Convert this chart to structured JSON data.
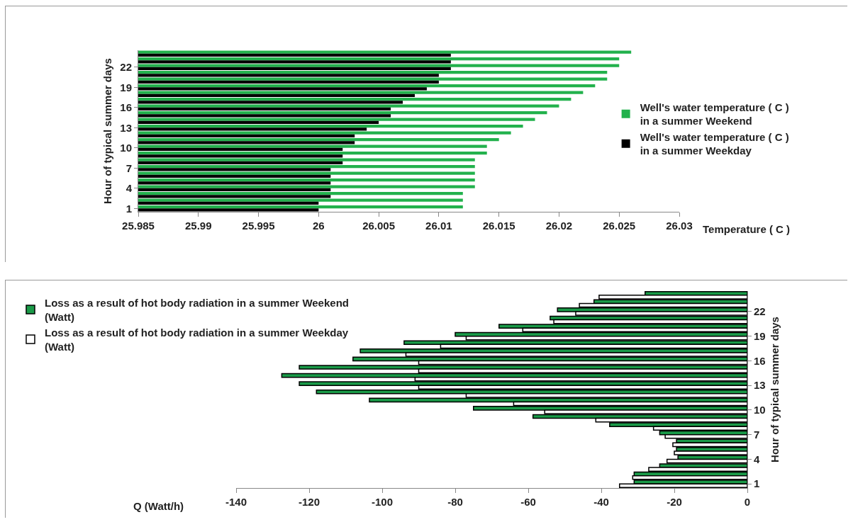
{
  "chart_data": [
    {
      "type": "bar",
      "orientation": "horizontal",
      "ylabel": "Hour of typical summer days",
      "xlabel": "Temperature ( C )",
      "categories": [
        null,
        null,
        "22",
        null,
        null,
        "19",
        null,
        null,
        "16",
        null,
        null,
        "13",
        null,
        null,
        "10",
        null,
        null,
        "7",
        null,
        null,
        "4",
        null,
        null,
        "1"
      ],
      "series": [
        {
          "name": "Well's water temperature ( C ) in a summer Weekend",
          "color": "#22b14c",
          "values": [
            26.026,
            26.025,
            26.025,
            26.024,
            26.024,
            26.023,
            26.022,
            26.021,
            26.02,
            26.019,
            26.018,
            26.017,
            26.016,
            26.015,
            26.014,
            26.014,
            26.013,
            26.013,
            26.013,
            26.013,
            26.013,
            26.012,
            26.012,
            26.012
          ]
        },
        {
          "name": "Well's water temperature ( C ) in a summer Weekday",
          "color": "#000000",
          "values": [
            26.011,
            26.011,
            26.011,
            26.01,
            26.01,
            26.009,
            26.008,
            26.007,
            26.006,
            26.006,
            26.005,
            26.004,
            26.003,
            26.003,
            26.002,
            26.002,
            26.002,
            26.001,
            26.001,
            26.001,
            26.001,
            26.001,
            26.0,
            26.0
          ]
        }
      ],
      "xlim": [
        25.985,
        26.03
      ],
      "xticks": [
        25.985,
        25.99,
        25.995,
        26,
        26.005,
        26.01,
        26.015,
        26.02,
        26.025,
        26.03
      ],
      "legend": "right",
      "grid": false
    },
    {
      "type": "bar",
      "orientation": "horizontal",
      "ylabel": "Hour of typical summer days",
      "xlabel": "Q (Watt/h)",
      "categories": [
        null,
        null,
        "22",
        null,
        null,
        "19",
        null,
        null,
        "16",
        null,
        null,
        "13",
        null,
        null,
        "10",
        null,
        null,
        "7",
        null,
        null,
        "4",
        null,
        null,
        "1"
      ],
      "series": [
        {
          "name": "Loss as a result of hot body radiation in a summer Weekend (Watt)",
          "color": "#1a9a48",
          "values": [
            -28,
            -42,
            -52,
            -54,
            -68,
            -80,
            -94,
            -106,
            -108,
            -122.7,
            -127.5,
            -122.7,
            -118,
            -103.5,
            -75,
            -58.7,
            -37.7,
            -24,
            -19.4,
            -19.4,
            -19,
            -24,
            -31,
            -31
          ]
        },
        {
          "name": "Loss as a result of hot body radiation in a summer Weekday (Watt)",
          "color": "#ffffff",
          "values": [
            -40.6,
            -46,
            -47,
            -53,
            -61.5,
            -77,
            -84,
            -93.5,
            -90,
            -90,
            -91,
            -90,
            -77,
            -64,
            -55.5,
            -41.5,
            -25.7,
            -22.5,
            -20.4,
            -20,
            -22,
            -27,
            -31.4,
            -35
          ]
        }
      ],
      "xlim": [
        -140,
        0
      ],
      "xticks": [
        -140,
        -120,
        -100,
        -80,
        -60,
        -40,
        -20,
        0
      ],
      "legend": "top left",
      "grid": false
    }
  ]
}
